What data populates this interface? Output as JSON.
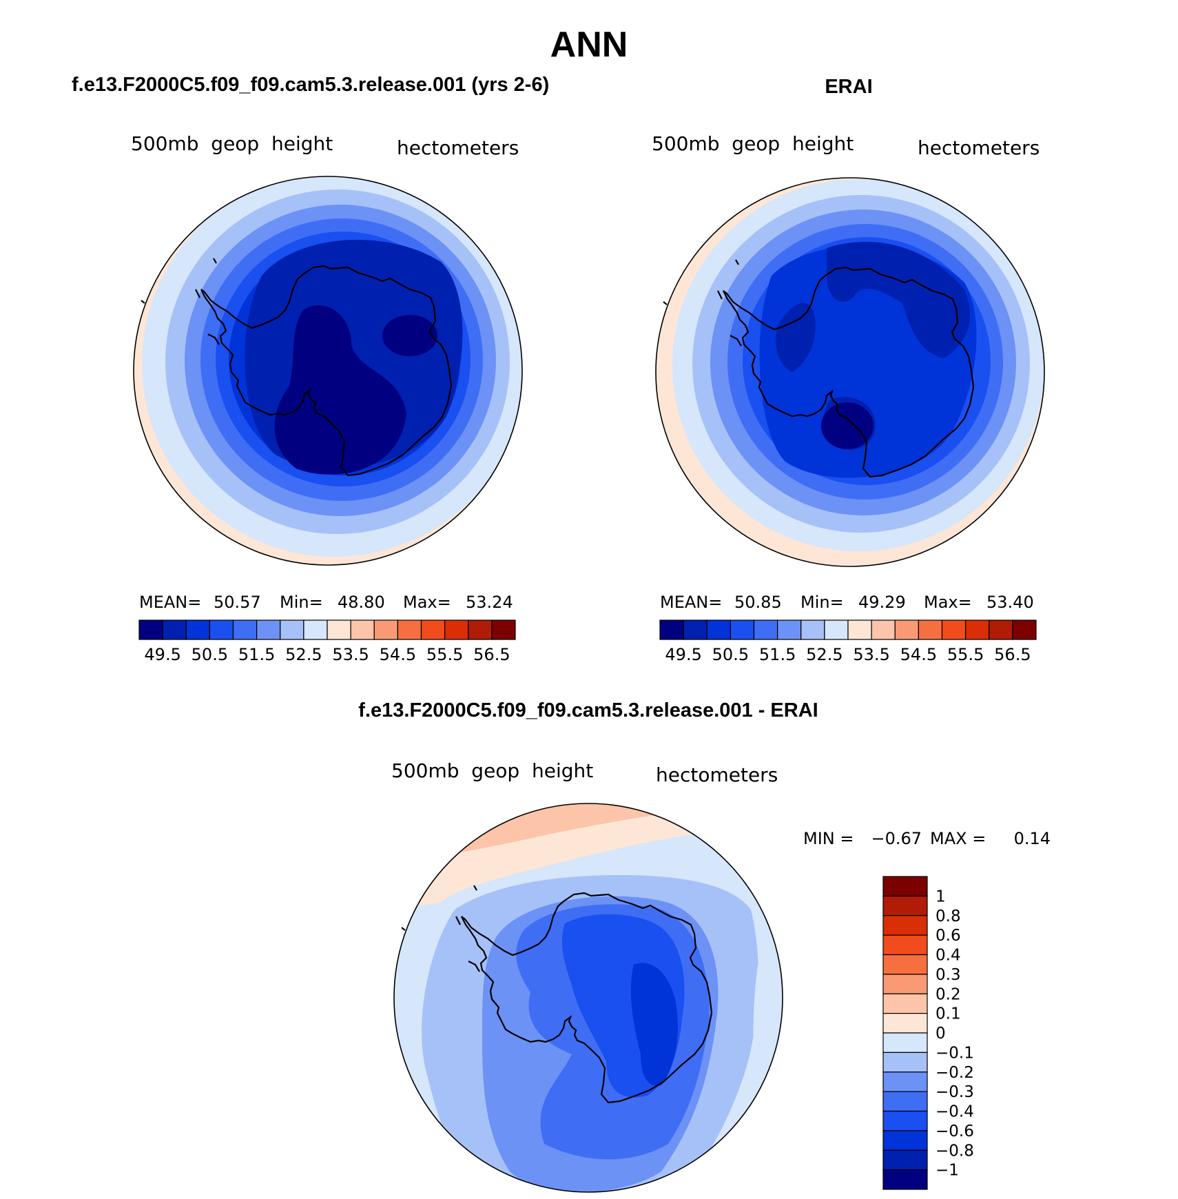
{
  "title": "ANN",
  "panels": {
    "model": {
      "heading": "f.e13.F2000C5.f09_f09.cam5.3.release.001 (yrs 2-6)",
      "left_label": "500mb  geop  height",
      "right_label": "hectometers",
      "stats": {
        "mean_label": "MEAN=",
        "mean": "50.57",
        "min_label": "Min=",
        "min": "48.80",
        "max_label": "Max=",
        "max": "53.24"
      },
      "field": {
        "min": 48.8,
        "max": 53.24
      }
    },
    "obs": {
      "heading": "ERAI",
      "left_label": "500mb  geop  height",
      "right_label": "hectometers",
      "stats": {
        "mean_label": "MEAN=",
        "mean": "50.85",
        "min_label": "Min=",
        "min": "49.29",
        "max_label": "Max=",
        "max": "53.40"
      },
      "field": {
        "min": 49.29,
        "max": 53.4
      }
    },
    "diff": {
      "heading": "f.e13.F2000C5.f09_f09.cam5.3.release.001 - ERAI",
      "left_label": "500mb  geop  height",
      "right_label": "hectometers",
      "minmax": {
        "min_label": "MIN =",
        "min": "−0.67",
        "max_label": "MAX =",
        "max": "0.14"
      },
      "field": {
        "min": -0.67,
        "max": 0.14
      }
    }
  },
  "abs_colorbar": {
    "colors": [
      "#000080",
      "#0020b0",
      "#0033d8",
      "#1a4ff0",
      "#3f6ef5",
      "#6c92f6",
      "#a6c1f8",
      "#d6e6fb",
      "#fde6d6",
      "#fcc4a8",
      "#fa9a75",
      "#f6703f",
      "#f04c1c",
      "#da2e07",
      "#b01c05",
      "#7c0000"
    ],
    "tick_labels": [
      "49.5",
      "50.5",
      "51.5",
      "52.5",
      "53.5",
      "54.5",
      "55.5",
      "56.5"
    ]
  },
  "diff_colorbar": {
    "colors": [
      "#7c0000",
      "#b01c05",
      "#da2e07",
      "#f04c1c",
      "#f6703f",
      "#fa9a75",
      "#fcc4a8",
      "#fde6d6",
      "#d6e6fb",
      "#a6c1f8",
      "#6c92f6",
      "#3f6ef5",
      "#1a4ff0",
      "#0033d8",
      "#0020b0",
      "#000080"
    ],
    "tick_labels": [
      "1",
      "0.8",
      "0.6",
      "0.4",
      "0.3",
      "0.2",
      "0.1",
      "0",
      "−0.1",
      "−0.2",
      "−0.3",
      "−0.4",
      "−0.6",
      "−0.8",
      "−1"
    ]
  }
}
